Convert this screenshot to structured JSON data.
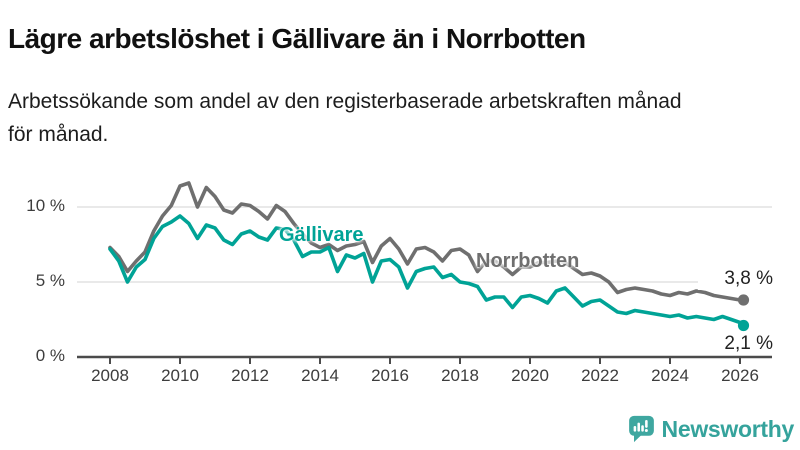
{
  "header": {
    "title": "Lägre arbetslöshet i Gällivare än i Norrbotten",
    "subtitle_lines": [
      "Arbetssökande som andel av den registerbaserade arbetskraften månad",
      "för månad."
    ]
  },
  "chart_data": {
    "type": "line",
    "title": "Lägre arbetslöshet i Gällivare än i Norrbotten",
    "subtitle": "Arbetssökande som andel av den registerbaserade arbetskraften månad för månad.",
    "unit": "%",
    "xlabel": "",
    "ylabel": "",
    "ylim": [
      0,
      12
    ],
    "grid": "horizontal",
    "legend": "inline-series-labels",
    "x": [
      2008,
      2008.25,
      2008.5,
      2008.75,
      2009,
      2009.25,
      2009.5,
      2009.75,
      2010,
      2010.25,
      2010.5,
      2010.75,
      2011,
      2011.25,
      2011.5,
      2011.75,
      2012,
      2012.25,
      2012.5,
      2012.75,
      2013,
      2013.25,
      2013.5,
      2013.75,
      2014,
      2014.25,
      2014.5,
      2014.75,
      2015,
      2015.25,
      2015.5,
      2015.75,
      2016,
      2016.25,
      2016.5,
      2016.75,
      2017,
      2017.25,
      2017.5,
      2017.75,
      2018,
      2018.25,
      2018.5,
      2018.75,
      2019,
      2019.25,
      2019.5,
      2019.75,
      2020,
      2020.25,
      2020.5,
      2020.75,
      2021,
      2021.25,
      2021.5,
      2021.75,
      2022,
      2022.25,
      2022.5,
      2022.75,
      2023,
      2023.25,
      2023.5,
      2023.75,
      2024,
      2024.25,
      2024.5,
      2024.75,
      2025,
      2025.25,
      2025.5,
      2025.75,
      2026,
      2026.1
    ],
    "series": [
      {
        "name": "Norrbotten",
        "color": "#6f6f6f",
        "end_label": "3,8 %",
        "end_value": 3.8,
        "values": [
          7.3,
          6.7,
          5.7,
          6.4,
          7.0,
          8.4,
          9.4,
          10.1,
          11.4,
          11.6,
          10.0,
          11.3,
          10.7,
          9.8,
          9.6,
          10.2,
          10.1,
          9.7,
          9.2,
          10.1,
          9.7,
          8.9,
          8.2,
          7.6,
          7.3,
          7.5,
          7.1,
          7.4,
          7.5,
          7.7,
          6.3,
          7.4,
          7.9,
          7.2,
          6.2,
          7.2,
          7.3,
          7.0,
          6.4,
          7.1,
          7.2,
          6.8,
          5.7,
          6.4,
          6.4,
          6.0,
          5.5,
          6.0,
          6.0,
          6.3,
          6.3,
          6.4,
          6.3,
          5.9,
          5.5,
          5.6,
          5.4,
          5.0,
          4.3,
          4.5,
          4.6,
          4.5,
          4.4,
          4.2,
          4.1,
          4.3,
          4.2,
          4.4,
          4.3,
          4.1,
          4.0,
          3.9,
          3.8,
          3.8
        ]
      },
      {
        "name": "Gällivare",
        "color": "#00a396",
        "end_label": "2,1 %",
        "end_value": 2.1,
        "values": [
          7.2,
          6.4,
          5.0,
          6.0,
          6.5,
          7.9,
          8.7,
          9.0,
          9.4,
          8.9,
          7.9,
          8.8,
          8.6,
          7.8,
          7.5,
          8.2,
          8.4,
          8.0,
          7.8,
          8.6,
          8.5,
          7.8,
          6.7,
          7.0,
          7.0,
          7.3,
          5.7,
          6.8,
          6.6,
          6.9,
          5.0,
          6.4,
          6.5,
          6.0,
          4.6,
          5.7,
          5.9,
          6.0,
          5.3,
          5.5,
          5.0,
          4.9,
          4.7,
          3.8,
          4.0,
          4.0,
          3.3,
          4.0,
          4.1,
          3.9,
          3.6,
          4.4,
          4.6,
          4.0,
          3.4,
          3.7,
          3.8,
          3.4,
          3.0,
          2.9,
          3.1,
          3.0,
          2.9,
          2.8,
          2.7,
          2.8,
          2.6,
          2.7,
          2.6,
          2.5,
          2.7,
          2.5,
          2.3,
          2.1
        ]
      }
    ],
    "yticks": {
      "values": [
        0,
        5,
        10
      ],
      "labels": [
        "0 %",
        "5 %",
        "10 %"
      ]
    },
    "xticks": {
      "values": [
        2008,
        2010,
        2012,
        2014,
        2016,
        2018,
        2020,
        2022,
        2024,
        2026
      ],
      "labels": [
        "2008",
        "2010",
        "2012",
        "2014",
        "2016",
        "2018",
        "2020",
        "2022",
        "2024",
        "2026"
      ]
    },
    "gridlines": [
      5,
      10
    ],
    "colors": {
      "grid": "#e2e2e2",
      "axis": "#4b4b4b",
      "tick_text": "#3d3d3d"
    }
  },
  "footer": {
    "brand": "Newsworthy",
    "brand_color": "#35a39c",
    "icon_color": "#3fa7a0"
  }
}
